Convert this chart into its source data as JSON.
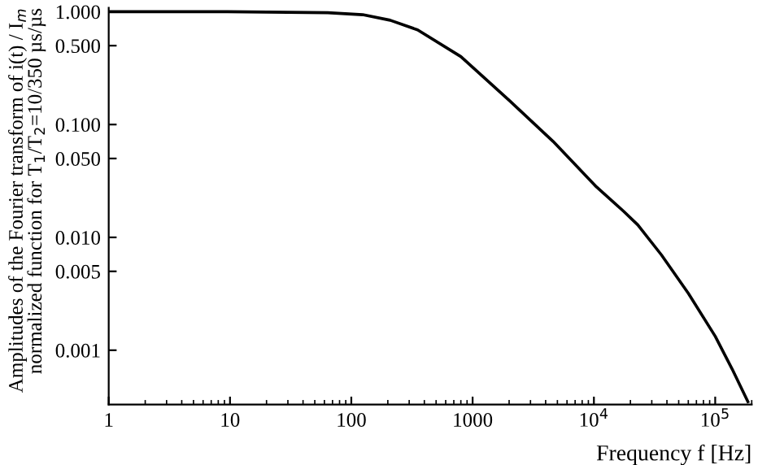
{
  "chart_data": {
    "type": "line",
    "xlabel": "Frequency f [Hz]",
    "ylabel": "Amplitudes of the Fourier transform of i(t) / I$_{m}$\nnormalized function for T$_{1}$/T$_{2}$=10/350 µs/µs",
    "log": "xy",
    "grid": false,
    "marker": "none",
    "line_style": "solid",
    "xlim": [
      1,
      200000
    ],
    "ylim": [
      0.00033,
      1.08
    ],
    "xticks": [
      1,
      10,
      100,
      1000,
      {
        "value": 10000,
        "label": "10$^{4}$"
      },
      {
        "value": 100000,
        "label": "10$^{5}$"
      }
    ],
    "yticks": [
      {
        "value": 1,
        "label": "1.000"
      },
      {
        "value": 0.5,
        "label": "0.500"
      },
      {
        "value": 0.1,
        "label": "0.100"
      },
      {
        "value": 0.05,
        "label": "0.050"
      },
      {
        "value": 0.01,
        "label": "0.010"
      },
      {
        "value": 0.005,
        "label": "0.005"
      },
      {
        "value": 0.001,
        "label": "0.001"
      }
    ],
    "series": [
      {
        "color": "#000000",
        "x": [
          1,
          9.5,
          64,
          124,
          209,
          352,
          800,
          2000,
          4600,
          10500,
          17600,
          23000,
          36000,
          60000,
          100000,
          138000,
          186000
        ],
        "values": [
          1.0,
          1.0,
          0.98,
          0.94,
          0.84,
          0.69,
          0.4,
          0.164,
          0.071,
          0.028,
          0.017,
          0.0129,
          0.007,
          0.0032,
          0.00133,
          0.00068,
          0.00035
        ]
      }
    ]
  }
}
